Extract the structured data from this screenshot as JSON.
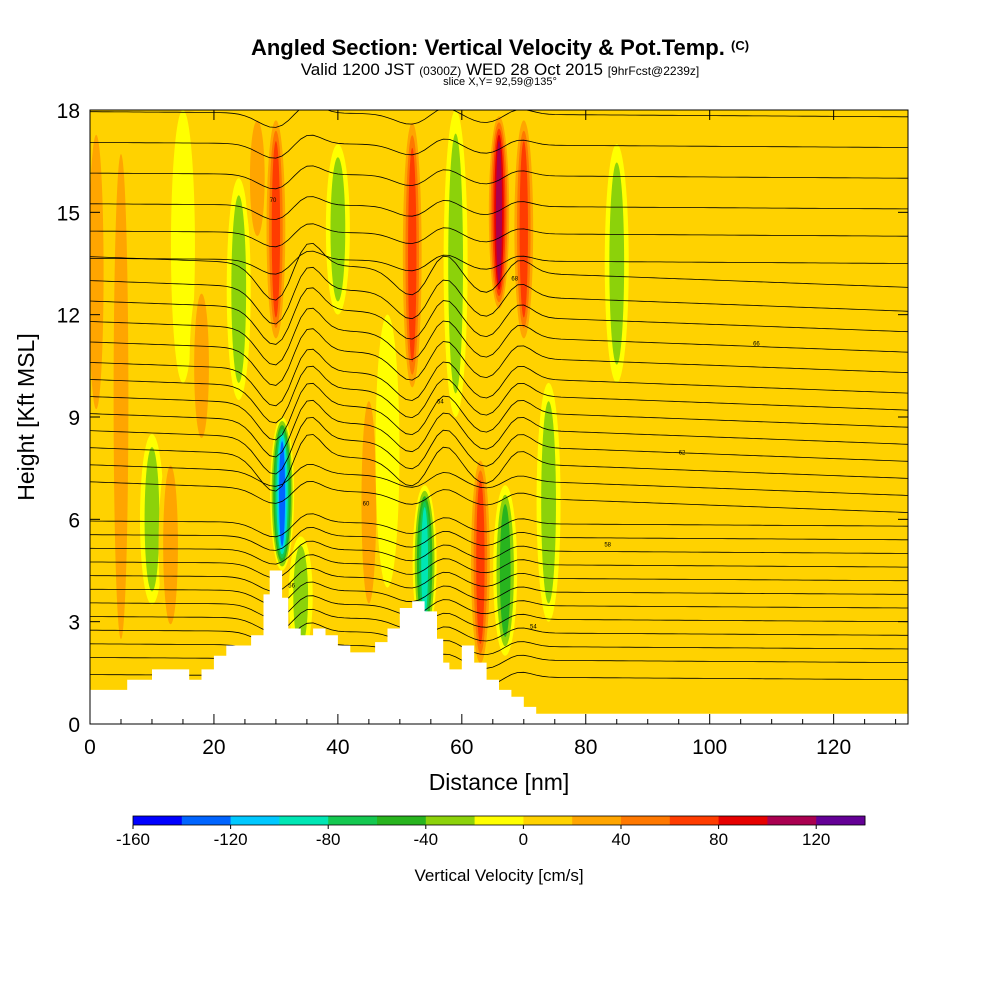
{
  "header": {
    "title": "Angled Section: Vertical Velocity & Pot.Temp.",
    "title_unit": "(C)",
    "valid_prefix": "Valid 1200 JST",
    "valid_utc": "(0300Z)",
    "valid_date": "WED 28 Oct 2015",
    "forecast": "[9hrFcst@2239z]",
    "slice": "slice X,Y= 92,59@135°"
  },
  "chart_data": {
    "type": "heatmap",
    "xlabel": "Distance [nm]",
    "ylabel": "Height [Kft MSL]",
    "xlim": [
      0,
      132
    ],
    "ylim": [
      0,
      18
    ],
    "x_ticks": [
      "0",
      "20",
      "40",
      "60",
      "80",
      "100",
      "120"
    ],
    "y_ticks": [
      "0",
      "3",
      "6",
      "9",
      "12",
      "15",
      "18"
    ],
    "colorbar": {
      "title": "Vertical Velocity [cm/s]",
      "labels": [
        "-160",
        "-120",
        "-80",
        "-40",
        "0",
        "40",
        "80",
        "120"
      ],
      "min": -160,
      "max": 140,
      "step": 20,
      "colors": [
        "#0000ff",
        "#0064ff",
        "#00c8ff",
        "#00e6b4",
        "#14c850",
        "#28b41e",
        "#8cd20a",
        "#ffff00",
        "#ffd200",
        "#ffa500",
        "#ff7800",
        "#ff3c00",
        "#e60000",
        "#aa0050",
        "#640096"
      ]
    },
    "background_level": 10,
    "bands": [
      {
        "x": 1,
        "y0": 8.5,
        "y1": 18,
        "v": 40
      },
      {
        "x": 5,
        "y0": 1.2,
        "y1": 18,
        "v": 50
      },
      {
        "x": 10,
        "y0": 3.5,
        "y1": 8.5,
        "v": -40
      },
      {
        "x": 13,
        "y0": 2.5,
        "y1": 8.0,
        "v": 40
      },
      {
        "x": 15,
        "y0": 10,
        "y1": 18,
        "v": -30
      },
      {
        "x": 18,
        "y0": 8.0,
        "y1": 13,
        "v": 40
      },
      {
        "x": 24,
        "y0": 9.5,
        "y1": 16,
        "v": -50
      },
      {
        "x": 27,
        "y0": 14,
        "y1": 18,
        "v": 40
      },
      {
        "x": 30,
        "y0": 11,
        "y1": 18,
        "v": 80
      },
      {
        "x": 31,
        "y0": 4.5,
        "y1": 9.0,
        "v": -140
      },
      {
        "x": 34,
        "y0": 2.0,
        "y1": 5.5,
        "v": -40
      },
      {
        "x": 40,
        "y0": 12,
        "y1": 17,
        "v": -40
      },
      {
        "x": 45,
        "y0": 3.0,
        "y1": 10,
        "v": 40
      },
      {
        "x": 48,
        "y0": 4.0,
        "y1": 12,
        "v": -20
      },
      {
        "x": 52,
        "y0": 9.5,
        "y1": 18,
        "v": 90
      },
      {
        "x": 54,
        "y0": 2.5,
        "y1": 7.0,
        "v": -100
      },
      {
        "x": 59,
        "y0": 9.0,
        "y1": 18,
        "v": -40
      },
      {
        "x": 63,
        "y0": 1.5,
        "y1": 8.0,
        "v": 90
      },
      {
        "x": 66,
        "y0": 12,
        "y1": 18,
        "v": 120
      },
      {
        "x": 67,
        "y0": 2.0,
        "y1": 7.0,
        "v": -60
      },
      {
        "x": 70,
        "y0": 11,
        "y1": 18,
        "v": 90
      },
      {
        "x": 74,
        "y0": 3.0,
        "y1": 10,
        "v": -40
      },
      {
        "x": 78,
        "y0": 9.0,
        "y1": 18,
        "v": 30
      },
      {
        "x": 85,
        "y0": 10,
        "y1": 17,
        "v": -40
      },
      {
        "x": 92,
        "y0": 12,
        "y1": 18,
        "v": 20
      },
      {
        "x": 100,
        "y0": 0.5,
        "y1": 18,
        "v": 20
      },
      {
        "x": 115,
        "y0": 1.5,
        "y1": 18,
        "v": 20
      },
      {
        "x": 125,
        "y0": 3.0,
        "y1": 18,
        "v": 10
      }
    ],
    "terrain": [
      [
        0,
        1.0
      ],
      [
        6,
        1.0
      ],
      [
        6,
        1.3
      ],
      [
        10,
        1.3
      ],
      [
        10,
        1.6
      ],
      [
        16,
        1.6
      ],
      [
        16,
        1.3
      ],
      [
        18,
        1.3
      ],
      [
        18,
        1.6
      ],
      [
        20,
        1.6
      ],
      [
        20,
        2.0
      ],
      [
        22,
        2.0
      ],
      [
        22,
        2.3
      ],
      [
        26,
        2.3
      ],
      [
        26,
        2.6
      ],
      [
        28,
        2.6
      ],
      [
        28,
        3.8
      ],
      [
        29,
        3.8
      ],
      [
        29,
        4.5
      ],
      [
        31,
        4.5
      ],
      [
        31,
        3.7
      ],
      [
        32,
        3.7
      ],
      [
        32,
        2.8
      ],
      [
        34,
        2.8
      ],
      [
        34,
        2.6
      ],
      [
        36,
        2.6
      ],
      [
        36,
        2.8
      ],
      [
        38,
        2.8
      ],
      [
        38,
        2.6
      ],
      [
        40,
        2.6
      ],
      [
        40,
        2.3
      ],
      [
        42,
        2.3
      ],
      [
        42,
        2.1
      ],
      [
        46,
        2.1
      ],
      [
        46,
        2.4
      ],
      [
        48,
        2.4
      ],
      [
        48,
        2.8
      ],
      [
        50,
        2.8
      ],
      [
        50,
        3.4
      ],
      [
        52,
        3.4
      ],
      [
        52,
        3.6
      ],
      [
        54,
        3.6
      ],
      [
        54,
        3.3
      ],
      [
        56,
        3.3
      ],
      [
        56,
        2.5
      ],
      [
        57,
        2.5
      ],
      [
        57,
        1.8
      ],
      [
        58,
        1.8
      ],
      [
        58,
        1.6
      ],
      [
        60,
        1.6
      ],
      [
        60,
        2.3
      ],
      [
        62,
        2.3
      ],
      [
        62,
        1.8
      ],
      [
        64,
        1.8
      ],
      [
        64,
        1.3
      ],
      [
        66,
        1.3
      ],
      [
        66,
        1.0
      ],
      [
        68,
        1.0
      ],
      [
        68,
        0.8
      ],
      [
        70,
        0.8
      ],
      [
        70,
        0.5
      ],
      [
        72,
        0.5
      ],
      [
        72,
        0.3
      ],
      [
        132,
        0.3
      ]
    ],
    "contours": {
      "base_height": [
        1.3,
        1.8,
        2.2,
        2.6,
        3.0,
        3.4,
        3.8,
        4.2,
        4.6,
        5.0,
        5.4,
        5.8,
        6.2,
        6.7,
        7.2,
        7.7,
        8.2,
        8.7,
        9.2,
        9.7,
        10.3,
        10.9,
        11.5,
        12.1,
        12.8,
        13.5,
        14.3,
        15.1,
        16.0,
        16.9,
        17.8
      ],
      "labels": [
        "52",
        "54",
        "56",
        "58",
        "60",
        "62",
        "64",
        "66",
        "68",
        "70"
      ]
    }
  }
}
